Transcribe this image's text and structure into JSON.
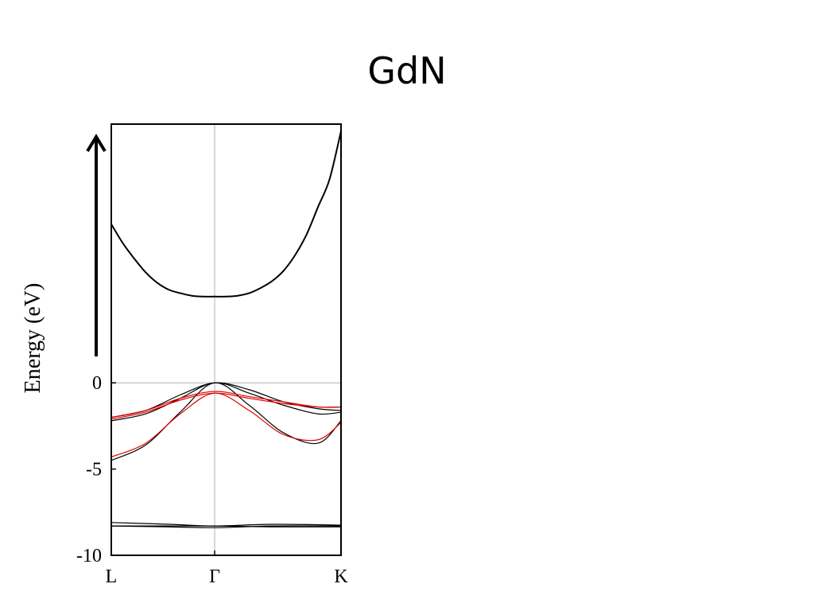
{
  "slide": {
    "title": "GdN"
  },
  "colors": {
    "frame": "#000000",
    "band_black": "#000000",
    "band_red": "#e00000",
    "grid": "#b0b0b0"
  },
  "chart_data": {
    "type": "line",
    "title": "GdN",
    "xlabel": "",
    "ylabel": "Energy (eV)",
    "ylim": [
      -10,
      15
    ],
    "yticks": [
      {
        "value": 0,
        "label": "0"
      },
      {
        "value": -5,
        "label": "-5"
      },
      {
        "value": -10,
        "label": "-10"
      }
    ],
    "kpoints": [
      {
        "x": 0,
        "label": "L"
      },
      {
        "x": 0.45,
        "label": "Γ"
      },
      {
        "x": 1,
        "label": "K"
      }
    ],
    "reference_lines": {
      "horizontal": [
        0
      ],
      "vertical": [
        0.45
      ]
    },
    "arrow": "up",
    "series": [
      {
        "color": "black",
        "x": [
          0,
          0.05,
          0.1,
          0.15,
          0.2,
          0.25,
          0.3,
          0.35,
          0.4,
          0.45,
          0.5,
          0.55,
          0.6,
          0.65,
          0.7,
          0.75,
          0.8,
          0.85,
          0.9,
          0.95,
          1.0
        ],
        "values": [
          9.2,
          8.1,
          7.2,
          6.4,
          5.8,
          5.4,
          5.2,
          5.05,
          5.0,
          5.0,
          5.0,
          5.05,
          5.2,
          5.5,
          5.9,
          6.5,
          7.4,
          8.6,
          10.2,
          11.8,
          14.6
        ]
      },
      {
        "color": "black",
        "x": [
          0,
          0.15,
          0.3,
          0.45,
          0.6,
          0.75,
          0.9,
          1.0
        ],
        "values": [
          -4.5,
          -3.6,
          -1.7,
          0.0,
          -1.3,
          -2.9,
          -3.5,
          -2.2
        ]
      },
      {
        "color": "black",
        "x": [
          0,
          0.15,
          0.3,
          0.45,
          0.6,
          0.75,
          0.9,
          1.0
        ],
        "values": [
          -2.2,
          -1.8,
          -0.9,
          0.0,
          -0.6,
          -1.3,
          -1.8,
          -1.7
        ]
      },
      {
        "color": "black",
        "x": [
          0,
          0.15,
          0.3,
          0.45,
          0.6,
          0.75,
          0.9,
          1.0
        ],
        "values": [
          -2.0,
          -1.6,
          -0.7,
          0.0,
          -0.4,
          -1.1,
          -1.5,
          -1.6
        ]
      },
      {
        "color": "red",
        "x": [
          0,
          0.15,
          0.3,
          0.45,
          0.6,
          0.75,
          0.9,
          1.0
        ],
        "values": [
          -4.3,
          -3.5,
          -1.8,
          -0.6,
          -1.6,
          -3.0,
          -3.3,
          -2.3
        ]
      },
      {
        "color": "red",
        "x": [
          0,
          0.15,
          0.3,
          0.45,
          0.6,
          0.75,
          0.9,
          1.0
        ],
        "values": [
          -2.1,
          -1.7,
          -1.0,
          -0.6,
          -0.9,
          -1.2,
          -1.4,
          -1.4
        ]
      },
      {
        "color": "red",
        "x": [
          0,
          0.15,
          0.3,
          0.45,
          0.6,
          0.75,
          0.9,
          1.0
        ],
        "values": [
          -2.0,
          -1.6,
          -0.9,
          -0.5,
          -0.8,
          -1.1,
          -1.4,
          -1.4
        ]
      },
      {
        "color": "black",
        "x": [
          0,
          0.25,
          0.45,
          0.7,
          1.0
        ],
        "values": [
          -8.1,
          -8.2,
          -8.3,
          -8.2,
          -8.25
        ]
      },
      {
        "color": "black",
        "x": [
          0,
          0.25,
          0.45,
          0.7,
          1.0
        ],
        "values": [
          -8.3,
          -8.3,
          -8.3,
          -8.35,
          -8.35
        ]
      },
      {
        "color": "black",
        "x": [
          0,
          0.25,
          0.45,
          0.7,
          1.0
        ],
        "values": [
          -8.3,
          -8.35,
          -8.4,
          -8.3,
          -8.3
        ]
      }
    ]
  }
}
